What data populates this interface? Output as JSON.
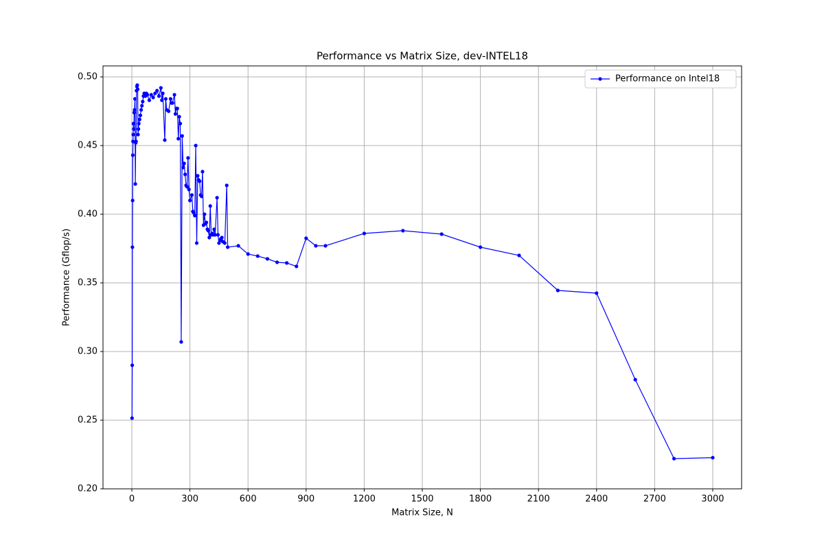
{
  "chart_data": {
    "type": "line",
    "title": "Performance vs Matrix Size, dev-INTEL18",
    "x_label": "Matrix Size, N",
    "y_label": "Performance (Gflop/s)",
    "x": [
      1,
      2,
      3,
      4,
      5,
      6,
      7,
      8,
      10,
      12,
      14,
      16,
      18,
      20,
      22,
      24,
      26,
      28,
      30,
      32,
      34,
      36,
      40,
      44,
      48,
      52,
      56,
      60,
      64,
      70,
      75,
      80,
      90,
      100,
      110,
      120,
      130,
      140,
      150,
      155,
      160,
      170,
      175,
      180,
      190,
      200,
      205,
      210,
      220,
      225,
      230,
      235,
      240,
      245,
      250,
      255,
      260,
      265,
      270,
      275,
      280,
      285,
      290,
      295,
      300,
      310,
      315,
      320,
      325,
      330,
      335,
      340,
      345,
      350,
      355,
      360,
      365,
      370,
      375,
      380,
      385,
      390,
      395,
      400,
      405,
      410,
      415,
      420,
      425,
      430,
      440,
      445,
      450,
      455,
      460,
      465,
      470,
      480,
      490,
      495,
      550,
      600,
      650,
      700,
      750,
      800,
      850,
      900,
      950,
      1000,
      1200,
      1400,
      1600,
      1800,
      2000,
      2200,
      2400,
      2600,
      2800,
      3000
    ],
    "series": [
      {
        "name": "Performance on Intel18",
        "color": "#0000ff",
        "values": [
          0.2515,
          0.29,
          0.376,
          0.41,
          0.443,
          0.453,
          0.458,
          0.466,
          0.462,
          0.474,
          0.476,
          0.484,
          0.422,
          0.452,
          0.453,
          0.49,
          0.493,
          0.494,
          0.491,
          0.458,
          0.462,
          0.466,
          0.469,
          0.472,
          0.476,
          0.479,
          0.482,
          0.486,
          0.488,
          0.486,
          0.488,
          0.487,
          0.483,
          0.487,
          0.485,
          0.488,
          0.49,
          0.486,
          0.492,
          0.483,
          0.488,
          0.454,
          0.484,
          0.476,
          0.475,
          0.484,
          0.481,
          0.481,
          0.487,
          0.473,
          0.477,
          0.477,
          0.455,
          0.471,
          0.466,
          0.307,
          0.457,
          0.434,
          0.437,
          0.429,
          0.421,
          0.42,
          0.441,
          0.418,
          0.41,
          0.414,
          0.402,
          0.401,
          0.399,
          0.45,
          0.379,
          0.428,
          0.425,
          0.424,
          0.414,
          0.413,
          0.431,
          0.392,
          0.4,
          0.393,
          0.394,
          0.389,
          0.388,
          0.383,
          0.406,
          0.385,
          0.386,
          0.385,
          0.389,
          0.385,
          0.412,
          0.385,
          0.379,
          0.381,
          0.382,
          0.383,
          0.38,
          0.379,
          0.421,
          0.376,
          0.377,
          0.371,
          0.3695,
          0.3675,
          0.365,
          0.3645,
          0.362,
          0.3825,
          0.377,
          0.377,
          0.386,
          0.388,
          0.3855,
          0.376,
          0.37,
          0.3445,
          0.3425,
          0.2795,
          0.222,
          0.2227
        ]
      }
    ],
    "xlim": [
      -149,
      3149
    ],
    "ylim": [
      0.2,
      0.508
    ],
    "xticks": [
      0,
      300,
      600,
      900,
      1200,
      1500,
      1800,
      2100,
      2400,
      2700,
      3000
    ],
    "yticks": [
      {
        "value": 0.2,
        "label": "0.20"
      },
      {
        "value": 0.25,
        "label": "0.25"
      },
      {
        "value": 0.3,
        "label": "0.30"
      },
      {
        "value": 0.35,
        "label": "0.35"
      },
      {
        "value": 0.4,
        "label": "0.40"
      },
      {
        "value": 0.45,
        "label": "0.45"
      },
      {
        "value": 0.5,
        "label": "0.50"
      }
    ],
    "grid": true,
    "legend": "upper right"
  }
}
